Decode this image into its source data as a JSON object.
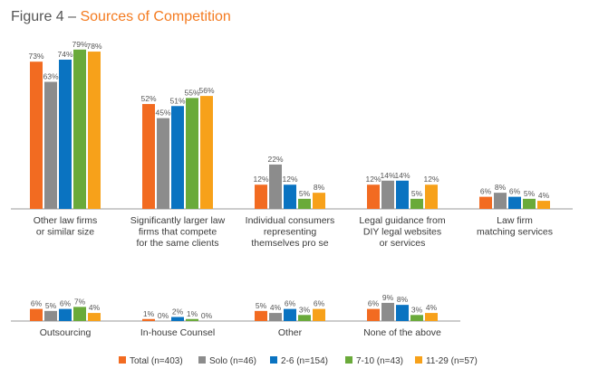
{
  "figure": {
    "prefix": "Figure 4 – ",
    "title": "Sources of Competition",
    "prefix_color": "#555555",
    "title_color": "#f47b20"
  },
  "chart_data": {
    "type": "bar",
    "title": "Figure 4 – Sources of Competition",
    "ylim": [
      0,
      80
    ],
    "grid": false,
    "legend_position": "bottom",
    "series": [
      {
        "name": "Total (n=403)",
        "color": "#f26b21"
      },
      {
        "name": "Solo (n=46)",
        "color": "#8c8c8c"
      },
      {
        "name": "2-6 (n=154)",
        "color": "#0a73c1"
      },
      {
        "name": "7-10 (n=43)",
        "color": "#6aaa3a"
      },
      {
        "name": "11-29 (n=57)",
        "color": "#f7a11a"
      }
    ],
    "groups": [
      {
        "label": [
          "Other law firms",
          "or similar size"
        ],
        "values": [
          73,
          63,
          74,
          79,
          78
        ]
      },
      {
        "label": [
          "Significantly larger law",
          "firms that compete",
          "for the same clients"
        ],
        "values": [
          52,
          45,
          51,
          55,
          56
        ]
      },
      {
        "label": [
          "Individual consumers",
          "representing",
          "themselves pro se"
        ],
        "values": [
          12,
          22,
          12,
          5,
          8
        ]
      },
      {
        "label": [
          "Legal guidance from",
          "DIY legal websites",
          "or services"
        ],
        "values": [
          12,
          14,
          14,
          5,
          12
        ]
      },
      {
        "label": [
          "Law firm",
          "matching services"
        ],
        "values": [
          6,
          8,
          6,
          5,
          4
        ]
      },
      {
        "label": [
          "Outsourcing"
        ],
        "values": [
          6,
          5,
          6,
          7,
          4
        ]
      },
      {
        "label": [
          "In-house Counsel"
        ],
        "values": [
          1,
          0,
          2,
          1,
          0
        ]
      },
      {
        "label": [
          "Other"
        ],
        "values": [
          5,
          4,
          6,
          3,
          6
        ]
      },
      {
        "label": [
          "None of the above"
        ],
        "values": [
          6,
          9,
          8,
          3,
          4
        ]
      }
    ]
  }
}
